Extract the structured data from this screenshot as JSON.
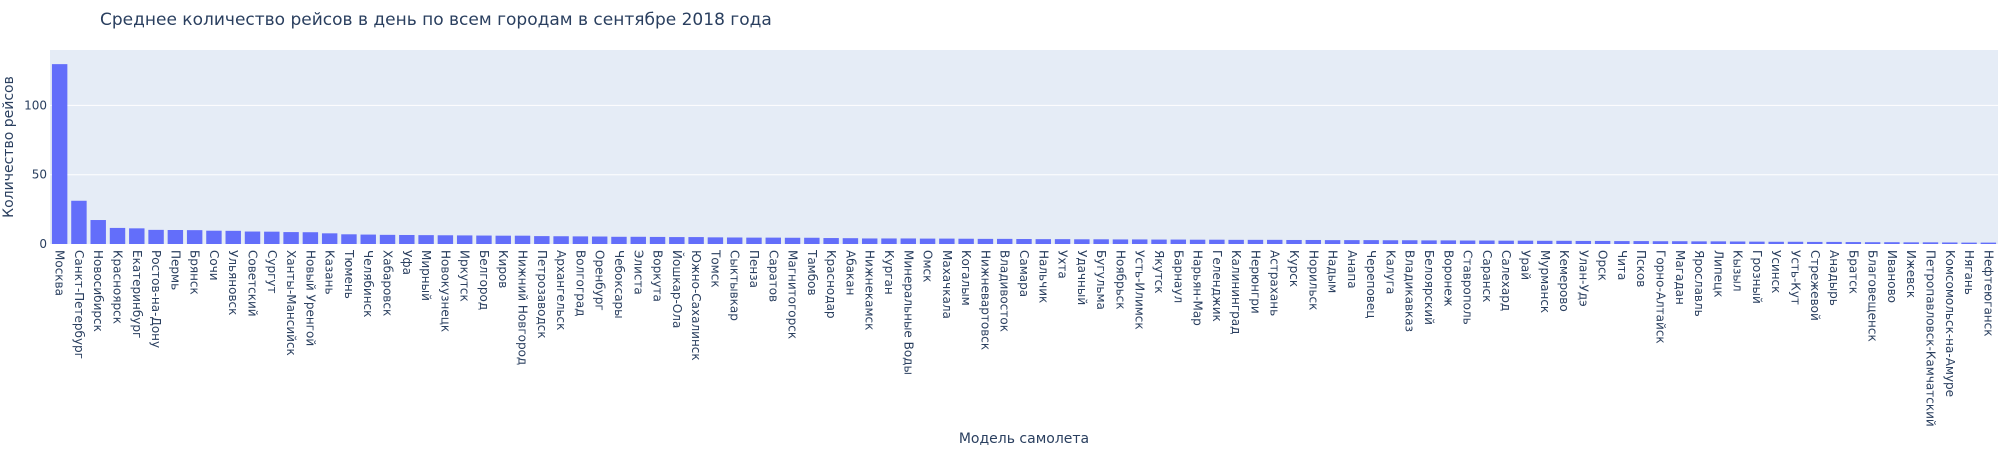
{
  "chart_data": {
    "type": "bar",
    "title": "Среднее количество рейсов в день по всем городам в сентябре 2018 года",
    "xlabel": "Модель самолета",
    "ylabel": "Количество рейсов",
    "ylim": [
      0,
      140
    ],
    "yticks": [
      0,
      50,
      100
    ],
    "grid": true,
    "bar_color": "#636efa",
    "plot_bg": "#e5ecf6",
    "categories": [
      "Москва",
      "Санкт-Петербург",
      "Новосибирск",
      "Красноярск",
      "Екатеринбург",
      "Ростов-на-Дону",
      "Пермь",
      "Брянск",
      "Сочи",
      "Ульяновск",
      "Советский",
      "Сургут",
      "Ханты-Мансийск",
      "Новый Уренгой",
      "Казань",
      "Тюмень",
      "Челябинск",
      "Хабаровск",
      "Уфа",
      "Мирный",
      "Новокузнецк",
      "Иркутск",
      "Белгород",
      "Киров",
      "Нижний Новгород",
      "Петрозаводск",
      "Архангельск",
      "Волгоград",
      "Оренбург",
      "Чебоксары",
      "Элиста",
      "Воркута",
      "Йошкар-Ола",
      "Южно-Сахалинск",
      "Томск",
      "Сыктывкар",
      "Пенза",
      "Саратов",
      "Магнитогорск",
      "Тамбов",
      "Краснодар",
      "Абакан",
      "Нижнекамск",
      "Курган",
      "Минеральные Воды",
      "Омск",
      "Махачкала",
      "Когалым",
      "Нижневартовск",
      "Владивосток",
      "Самара",
      "Нальчик",
      "Ухта",
      "Удачный",
      "Бугульма",
      "Ноябрьск",
      "Усть-Илимск",
      "Якутск",
      "Барнаул",
      "Нарьян-Мар",
      "Геленджик",
      "Калининград",
      "Нерюнгри",
      "Астрахань",
      "Курск",
      "Норильск",
      "Надым",
      "Анапа",
      "Череповец",
      "Калуга",
      "Владикавказ",
      "Белоярский",
      "Воронеж",
      "Ставрополь",
      "Саранск",
      "Салехард",
      "Урай",
      "Мурманск",
      "Кемерово",
      "Улан-Удэ",
      "Орск",
      "Чита",
      "Псков",
      "Горно-Алтайск",
      "Магадан",
      "Ярославль",
      "Липецк",
      "Кызыл",
      "Грозный",
      "Усинск",
      "Усть-Кут",
      "Стрежевой",
      "Анадырь",
      "Братск",
      "Благовещенск",
      "Иваново",
      "Ижевск",
      "Петропавловск-Камчатский",
      "Комсомольск-на-Амуре",
      "Нягань",
      "Нефтеюганск"
    ],
    "values": [
      129.8,
      31.2,
      17.3,
      11.6,
      11.3,
      10.2,
      10.1,
      10.0,
      9.6,
      9.5,
      9.0,
      8.9,
      8.6,
      8.5,
      7.7,
      7.0,
      6.8,
      6.6,
      6.5,
      6.4,
      6.3,
      6.2,
      6.1,
      6.0,
      6.0,
      5.7,
      5.6,
      5.5,
      5.4,
      5.2,
      5.2,
      5.1,
      5.0,
      5.0,
      4.8,
      4.7,
      4.6,
      4.6,
      4.5,
      4.5,
      4.3,
      4.2,
      4.0,
      4.0,
      4.0,
      3.9,
      3.9,
      3.8,
      3.7,
      3.7,
      3.6,
      3.5,
      3.5,
      3.4,
      3.4,
      3.3,
      3.3,
      3.2,
      3.2,
      3.1,
      3.1,
      3.0,
      3.0,
      3.0,
      2.9,
      2.9,
      2.8,
      2.8,
      2.8,
      2.7,
      2.7,
      2.6,
      2.6,
      2.5,
      2.5,
      2.4,
      2.4,
      2.3,
      2.3,
      2.2,
      2.2,
      2.1,
      2.1,
      2.0,
      2.0,
      1.9,
      1.9,
      1.8,
      1.7,
      1.6,
      1.6,
      1.5,
      1.5,
      1.4,
      1.3,
      1.3,
      1.2,
      1.2,
      1.1,
      1.0,
      1.0
    ]
  }
}
